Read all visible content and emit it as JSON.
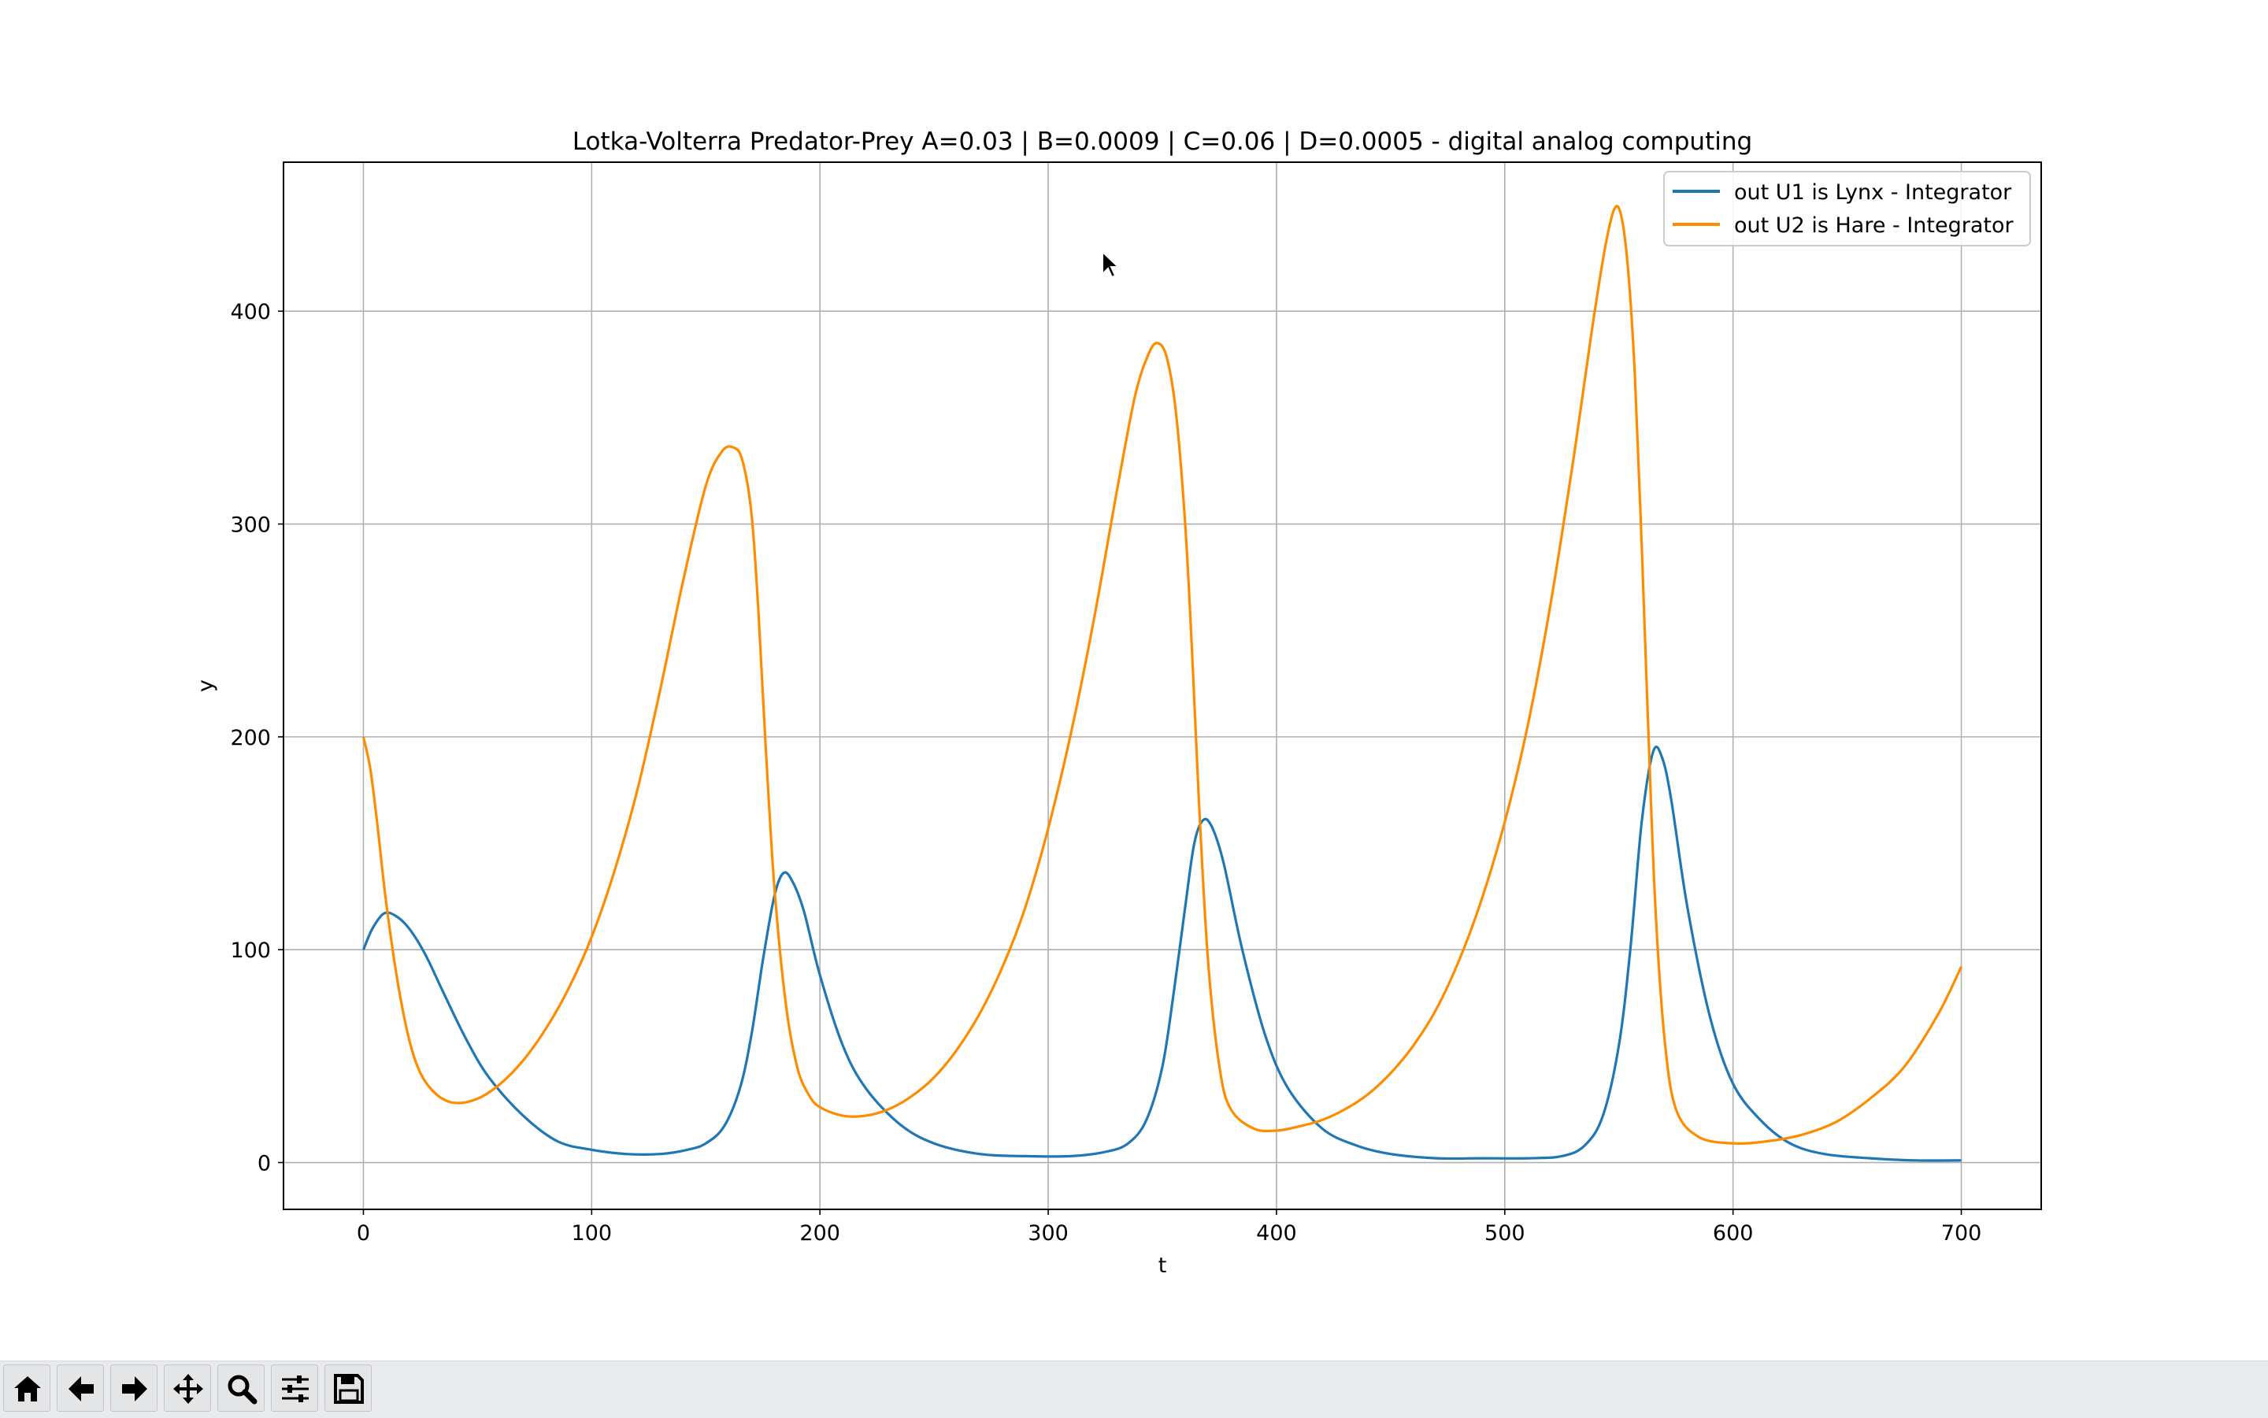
{
  "window": {
    "toolbar": [
      {
        "name": "home-button",
        "icon": "home-icon"
      },
      {
        "name": "back-button",
        "icon": "arrow-left-icon"
      },
      {
        "name": "forward-button",
        "icon": "arrow-right-icon"
      },
      {
        "name": "pan-button",
        "icon": "move-icon"
      },
      {
        "name": "zoom-button",
        "icon": "magnifier-icon"
      },
      {
        "name": "configure-subplots-button",
        "icon": "sliders-icon"
      },
      {
        "name": "save-button",
        "icon": "floppy-disk-icon"
      }
    ]
  },
  "chart_data": {
    "type": "line",
    "title": "Lotka-Volterra Predator-Prey A=0.03 | B=0.0009 | C=0.06 | D=0.0005   - digital analog computing",
    "xlabel": "t",
    "ylabel": "y",
    "xlim": [
      -35,
      735
    ],
    "ylim": [
      -22,
      470
    ],
    "xticks": [
      0,
      100,
      200,
      300,
      400,
      500,
      600,
      700
    ],
    "yticks": [
      0,
      100,
      200,
      300,
      400
    ],
    "grid": true,
    "legend_position": "top-right",
    "series": [
      {
        "name": "out U1 is Lynx - Integrator",
        "color": "#1f77b4",
        "x": [
          0,
          4,
          9,
          14,
          20,
          27,
          35,
          45,
          55,
          70,
          85,
          100,
          115,
          130,
          142,
          150,
          158,
          165,
          170,
          175,
          180,
          184,
          188,
          193,
          200,
          210,
          220,
          235,
          250,
          270,
          290,
          310,
          325,
          335,
          343,
          350,
          355,
          360,
          364,
          368,
          372,
          377,
          385,
          395,
          405,
          420,
          435,
          450,
          470,
          490,
          510,
          525,
          535,
          543,
          550,
          555,
          560,
          565,
          569,
          573,
          580,
          590,
          600,
          612,
          625,
          640,
          660,
          680,
          700
        ],
        "y": [
          100,
          110,
          117,
          116,
          110,
          98,
          80,
          58,
          40,
          22,
          10,
          6,
          4,
          4,
          6,
          9,
          17,
          35,
          60,
          95,
          125,
          136,
          132,
          118,
          88,
          55,
          35,
          18,
          9,
          4,
          3,
          3,
          5,
          9,
          20,
          45,
          80,
          120,
          150,
          161,
          157,
          140,
          100,
          60,
          35,
          16,
          8,
          4,
          2,
          2,
          2,
          3,
          8,
          22,
          55,
          100,
          160,
          193,
          190,
          170,
          120,
          68,
          37,
          20,
          9,
          4,
          2,
          1,
          1
        ]
      },
      {
        "name": "out U2 is Hare - Integrator",
        "color": "#ff8c00",
        "x": [
          0,
          3,
          6,
          10,
          15,
          20,
          25,
          32,
          40,
          50,
          60,
          70,
          80,
          90,
          100,
          110,
          120,
          130,
          140,
          150,
          157,
          162,
          166,
          170,
          173,
          176,
          180,
          185,
          190,
          195,
          200,
          210,
          220,
          230,
          240,
          250,
          260,
          270,
          280,
          290,
          300,
          310,
          320,
          330,
          338,
          344,
          348,
          352,
          356,
          360,
          363,
          366,
          370,
          375,
          380,
          390,
          400,
          410,
          420,
          430,
          440,
          450,
          460,
          470,
          480,
          490,
          500,
          510,
          520,
          530,
          538,
          544,
          548,
          551,
          554,
          557,
          560,
          563,
          566,
          570,
          575,
          585,
          600,
          615,
          630,
          645,
          660,
          675,
          690,
          700
        ],
        "y": [
          200,
          185,
          160,
          122,
          85,
          58,
          42,
          32,
          28,
          30,
          37,
          48,
          63,
          82,
          106,
          137,
          175,
          222,
          273,
          318,
          334,
          336,
          330,
          305,
          260,
          200,
          130,
          75,
          45,
          32,
          26,
          22,
          22,
          25,
          31,
          40,
          53,
          70,
          92,
          120,
          157,
          202,
          255,
          315,
          360,
          380,
          385,
          378,
          352,
          300,
          240,
          170,
          95,
          45,
          25,
          16,
          15,
          17,
          20,
          25,
          32,
          42,
          55,
          72,
          95,
          124,
          160,
          205,
          262,
          330,
          390,
          430,
          448,
          445,
          420,
          370,
          290,
          200,
          120,
          58,
          25,
          12,
          9,
          10,
          13,
          19,
          30,
          45,
          70,
          92
        ]
      }
    ]
  }
}
